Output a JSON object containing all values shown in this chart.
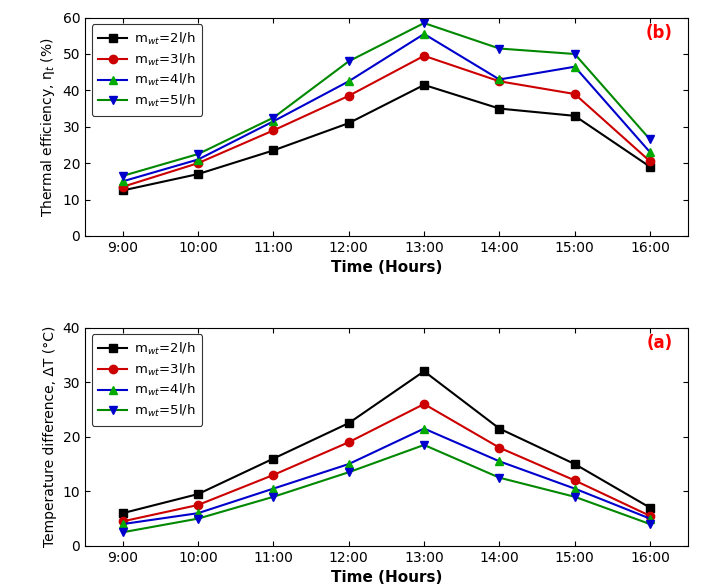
{
  "time_labels": [
    "9:00",
    "10:00",
    "11:00",
    "12:00",
    "13:00",
    "14:00",
    "15:00",
    "16:00"
  ],
  "time_positions": [
    9,
    10,
    11,
    12,
    13,
    14,
    15,
    16
  ],
  "eta_2": [
    12.5,
    17.0,
    23.5,
    31.0,
    41.5,
    35.0,
    33.0,
    19.0
  ],
  "eta_3": [
    13.5,
    20.0,
    29.0,
    38.5,
    49.5,
    42.5,
    39.0,
    20.5
  ],
  "eta_4": [
    15.0,
    21.0,
    31.5,
    42.5,
    55.5,
    43.0,
    46.5,
    23.0
  ],
  "eta_5": [
    16.5,
    22.5,
    32.5,
    48.0,
    58.5,
    51.5,
    50.0,
    26.5
  ],
  "dT_2": [
    6.0,
    9.5,
    16.0,
    22.5,
    32.0,
    21.5,
    15.0,
    7.0
  ],
  "dT_3": [
    4.5,
    7.5,
    13.0,
    19.0,
    26.0,
    18.0,
    12.0,
    5.5
  ],
  "dT_4": [
    4.0,
    6.0,
    10.5,
    15.0,
    21.5,
    15.5,
    10.5,
    5.0
  ],
  "dT_5": [
    2.5,
    5.0,
    9.0,
    13.5,
    18.5,
    12.5,
    9.0,
    4.0
  ],
  "line_colors": [
    "#000000",
    "#cc0000",
    "#0000cc",
    "#008800"
  ],
  "marker_colors": [
    "#000000",
    "#cc0000",
    "#00aa00",
    "#0000cc"
  ],
  "markers": [
    "s",
    "o",
    "^",
    "v"
  ],
  "labels": [
    "m$_{wt}$=2l/h",
    "m$_{wt}$=3l/h",
    "m$_{wt}$=4l/h",
    "m$_{wt}$=5l/h"
  ],
  "ylabel_b": "Thermal efficiency, η$_t$ (%)",
  "ylabel_a": "Temperature difference, ΔT (°C)",
  "xlabel": "Time (Hours)",
  "ylim_b": [
    0,
    60
  ],
  "ylim_a": [
    0,
    40
  ],
  "yticks_b": [
    0,
    10,
    20,
    30,
    40,
    50,
    60
  ],
  "yticks_a": [
    0,
    10,
    20,
    30,
    40
  ],
  "label_b": "(b)",
  "label_a": "(a)",
  "bg_color": "#ffffff",
  "linewidth": 1.5,
  "markersize": 6
}
